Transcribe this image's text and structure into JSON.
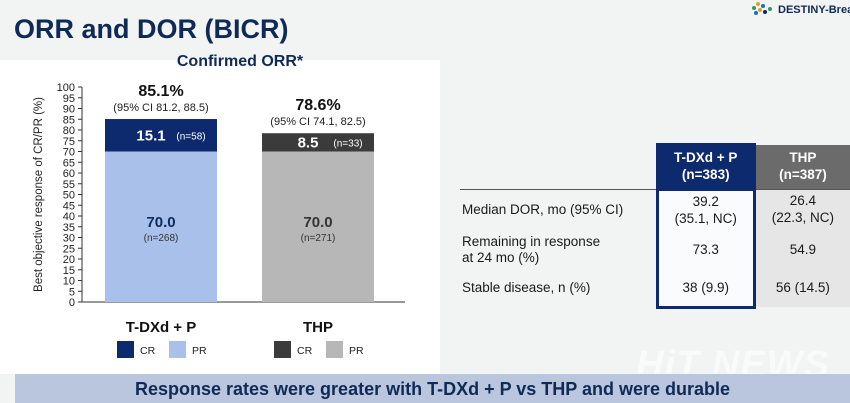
{
  "title": "ORR and DOR (BICR)",
  "logo_text": "DESTINY-Breas",
  "watermark": "HiT NEWS",
  "banner_text": "Response rates were greater with T-DXd + P vs THP and were durable",
  "colors": {
    "tdxd_cr": "#0d2a6e",
    "tdxd_pr": "#a9c1ea",
    "thp_cr": "#3b3b3b",
    "thp_pr": "#b7b7b7",
    "brand": "#0f2a56"
  },
  "chart_data": {
    "type": "bar",
    "stacked": true,
    "title": "Confirmed ORR*",
    "ylabel": "Best objective response of CR/PR (%)",
    "ylim": [
      0,
      100
    ],
    "yticks": [
      0,
      5,
      10,
      15,
      20,
      25,
      30,
      35,
      40,
      45,
      50,
      55,
      60,
      65,
      70,
      75,
      80,
      85,
      90,
      95,
      100
    ],
    "categories": [
      "T-DXd + P",
      "THP"
    ],
    "bars": [
      {
        "category": "T-DXd + P",
        "total_label": "85.1%",
        "ci_label": "(95% CI 81.2, 88.5)",
        "segments": [
          {
            "name": "PR",
            "value": 70.0,
            "value_label": "70.0",
            "n_label": "(n=268)",
            "color": "#a9c1ea"
          },
          {
            "name": "CR",
            "value": 15.1,
            "value_label": "15.1",
            "n_label": "(n=58)",
            "color": "#0d2a6e"
          }
        ],
        "legend": [
          {
            "name": "CR",
            "color": "#0d2a6e"
          },
          {
            "name": "PR",
            "color": "#a9c1ea"
          }
        ]
      },
      {
        "category": "THP",
        "total_label": "78.6%",
        "ci_label": "(95% CI 74.1, 82.5)",
        "segments": [
          {
            "name": "PR",
            "value": 70.0,
            "value_label": "70.0",
            "n_label": "(n=271)",
            "color": "#b7b7b7"
          },
          {
            "name": "CR",
            "value": 8.5,
            "value_label": "8.5",
            "n_label": "(n=33)",
            "color": "#3b3b3b"
          }
        ],
        "legend": [
          {
            "name": "CR",
            "color": "#3b3b3b"
          },
          {
            "name": "PR",
            "color": "#b7b7b7"
          }
        ]
      }
    ]
  },
  "table": {
    "headers": [
      {
        "line1": "T-DXd + P",
        "line2": "(n=383)"
      },
      {
        "line1": "THP",
        "line2": "(n=387)"
      }
    ],
    "rows": [
      {
        "label_line1": "Median DOR, mo (95% CI)",
        "label_line2": "",
        "c1_line1": "39.2",
        "c1_line2": "(35.1, NC)",
        "c2_line1": "26.4",
        "c2_line2": "(22.3, NC)"
      },
      {
        "label_line1": "Remaining in response",
        "label_line2": "at 24 mo (%)",
        "c1_line1": "73.3",
        "c1_line2": "",
        "c2_line1": "54.9",
        "c2_line2": ""
      },
      {
        "label_line1": "Stable disease, n (%)",
        "label_line2": "",
        "c1_line1": "38 (9.9)",
        "c1_line2": "",
        "c2_line1": "56 (14.5)",
        "c2_line2": ""
      }
    ]
  }
}
